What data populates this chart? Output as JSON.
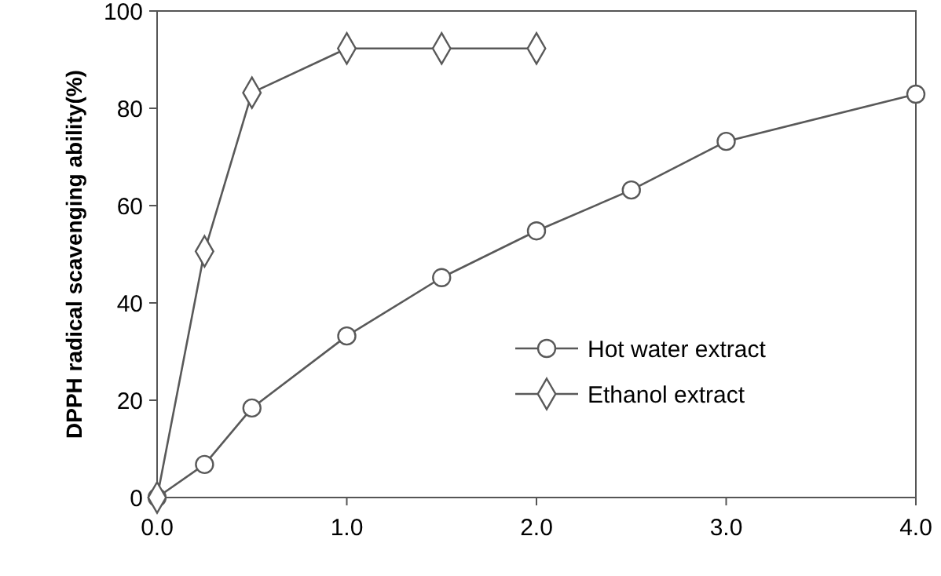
{
  "chart_data": {
    "type": "line",
    "ylabel": "DPPH radical scavenging ability(%)",
    "x": [
      0,
      0.25,
      0.5,
      1,
      1.5,
      2,
      2.5,
      3,
      4
    ],
    "xlim": [
      0,
      4
    ],
    "xticks": [
      {
        "value": 0,
        "label": "0.0"
      },
      {
        "value": 1,
        "label": "1.0"
      },
      {
        "value": 2,
        "label": "2.0"
      },
      {
        "value": 3,
        "label": "3.0"
      },
      {
        "value": 4,
        "label": "4.0"
      }
    ],
    "ylim": [
      0,
      100
    ],
    "yticks": [
      0,
      20,
      40,
      60,
      80,
      100
    ],
    "grid": false,
    "legend": "bottom right",
    "line_style": "solid",
    "series": [
      {
        "name": "Hot water extract",
        "color": "#595959",
        "marker": "circle",
        "values": [
          0,
          6.8,
          18.4,
          33.2,
          45.2,
          54.8,
          63.2,
          73.2,
          82.9
        ]
      },
      {
        "name": "Ethanol extract",
        "color": "#595959",
        "marker": "diamond",
        "x": [
          0,
          0.25,
          0.5,
          1,
          1.5,
          2
        ],
        "values": [
          0,
          50.6,
          83.2,
          92.3,
          92.3,
          92.3
        ]
      }
    ]
  }
}
